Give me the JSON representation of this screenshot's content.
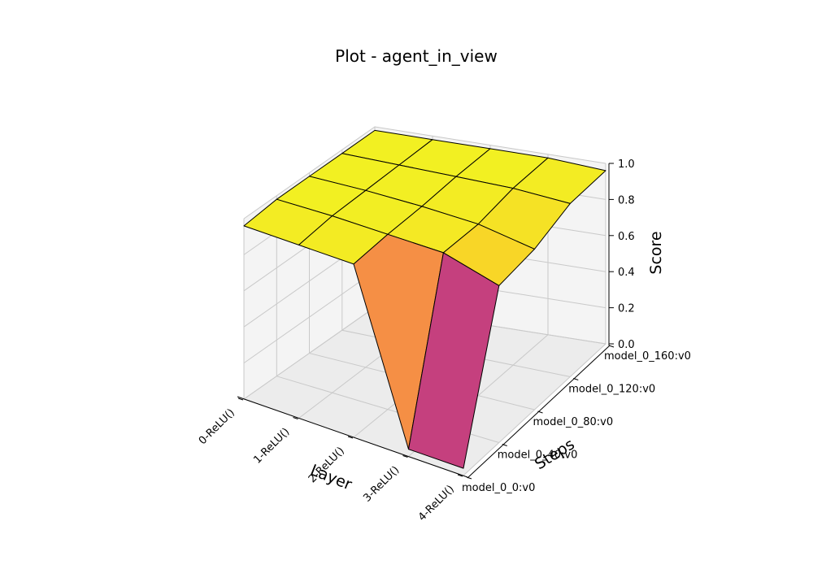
{
  "chart_data": {
    "type": "surface3d",
    "title": "Plot - agent_in_view",
    "xlabel": "Layer",
    "ylabel": "Steps",
    "zlabel": "Score",
    "x_categories": [
      "0-ReLU()",
      "1-ReLU()",
      "2-ReLU()",
      "3-ReLU()",
      "4-ReLU()"
    ],
    "y_categories": [
      "model_0_0:v0",
      "model_0_40:v0",
      "model_0_80:v0",
      "model_0_120:v0",
      "model_0_160:v0"
    ],
    "z_ticks": [
      "0.0",
      "0.2",
      "0.4",
      "0.6",
      "0.8",
      "1.0"
    ],
    "zlim": [
      0,
      1
    ],
    "colormap": "plasma",
    "grid": true,
    "z_values": [
      [
        0.96,
        0.96,
        0.96,
        0.04,
        0.04
      ],
      [
        0.98,
        0.98,
        0.97,
        0.96,
        0.87
      ],
      [
        0.98,
        0.98,
        0.97,
        0.95,
        0.89
      ],
      [
        0.98,
        0.98,
        0.98,
        0.98,
        0.96
      ],
      [
        0.98,
        0.98,
        0.98,
        0.98,
        0.96
      ]
    ]
  }
}
